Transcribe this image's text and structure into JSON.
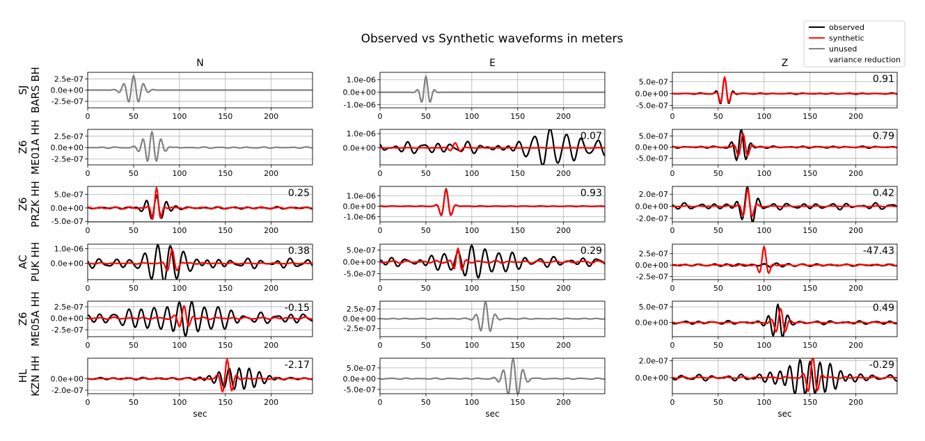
{
  "title": "Observed vs Synthetic waveforms in meters",
  "components": [
    "N",
    "E",
    "Z"
  ],
  "xlabel": "sec",
  "xticks": [
    0,
    50,
    100,
    150,
    200
  ],
  "xlim": [
    0,
    245
  ],
  "legend": {
    "position": "top-right",
    "entries": [
      {
        "label": "observed",
        "color": "#000000",
        "kind": "line"
      },
      {
        "label": "synthetic",
        "color": "#ff0000",
        "kind": "line"
      },
      {
        "label": "unused",
        "color": "#808080",
        "kind": "line"
      },
      {
        "label": "variance reduction",
        "color": "#0000ff",
        "kind": "text"
      }
    ]
  },
  "colors": {
    "observed": "#000000",
    "synthetic": "#ff0000",
    "unused": "#808080",
    "vr_text": "#0000ff"
  },
  "chart_data": {
    "type": "line",
    "stations": [
      {
        "network": "SJ",
        "station": "BARS BH",
        "panels": [
          {
            "comp": "N",
            "used": false,
            "vr": "",
            "ylim": [
              -4e-07,
              4e-07
            ],
            "yticks": [
              2.5e-07,
              0,
              -2.5e-07
            ],
            "yticklabels": [
              "2.5e-07",
              "0.0e+00",
              "-2.5e-07"
            ],
            "obs": {
              "center": 50,
              "width": 12,
              "period": 11,
              "amp": 3.3e-07,
              "noise": 0
            }
          },
          {
            "comp": "E",
            "used": false,
            "vr": "",
            "ylim": [
              -1.25e-06,
              1.6e-06
            ],
            "yticks": [
              1e-06,
              0,
              -1e-06
            ],
            "yticklabels": [
              "1.0e-06",
              "0.0e+00",
              "-1.0e-06"
            ],
            "obs": {
              "center": 50,
              "width": 7,
              "period": 10,
              "amp": 1.3e-06,
              "noise": 0
            }
          },
          {
            "comp": "Z",
            "used": true,
            "vr": "0.91",
            "ylim": [
              -6e-07,
              9e-07
            ],
            "yticks": [
              5e-07,
              0,
              -5e-07
            ],
            "yticklabels": [
              "5.0e-07",
              "0.0e+00",
              "-5.0e-07"
            ],
            "obs": {
              "center": 57,
              "width": 7,
              "period": 10,
              "amp": 7e-07,
              "noise": 0.04
            },
            "syn": {
              "center": 57,
              "width": 6,
              "period": 10,
              "amp": 7e-07,
              "noise": 0.01
            }
          }
        ]
      },
      {
        "network": "Z6",
        "station": "ME01A HH",
        "panels": [
          {
            "comp": "N",
            "used": false,
            "vr": "",
            "ylim": [
              -3.8e-07,
              4e-07
            ],
            "yticks": [
              2.5e-07,
              0,
              -2.5e-07
            ],
            "yticklabels": [
              "2.5e-07",
              "0.0e+00",
              "-2.5e-07"
            ],
            "obs": {
              "center": 70,
              "width": 12,
              "period": 10,
              "amp": 3.6e-07,
              "noise": 0.04
            }
          },
          {
            "comp": "E",
            "used": true,
            "vr": "0.07",
            "ylim": [
              -1.2e-06,
              1.3e-06
            ],
            "yticks": [
              1e-06,
              0
            ],
            "yticklabels": [
              "1.0e-06",
              "0.0e+00"
            ],
            "obs": {
              "center": 185,
              "width": 40,
              "period": 17,
              "amp": 1.3e-06,
              "noise": 0.35
            },
            "syn": {
              "center": 82,
              "width": 8,
              "period": 12,
              "amp": 3.5e-07,
              "noise": 0.05
            }
          },
          {
            "comp": "Z",
            "used": true,
            "vr": "0.79",
            "ylim": [
              -8e-07,
              8e-07
            ],
            "yticks": [
              5e-07,
              0,
              -5e-07
            ],
            "yticklabels": [
              "5.0e-07",
              "0.0e+00",
              "-5.0e-07"
            ],
            "obs": {
              "center": 75,
              "width": 9,
              "period": 11,
              "amp": 8e-07,
              "noise": 0.06
            },
            "syn": {
              "center": 77,
              "width": 8,
              "period": 11,
              "amp": 6e-07,
              "noise": 0.02
            }
          }
        ]
      },
      {
        "network": "Z6",
        "station": "PRZK HH",
        "panels": [
          {
            "comp": "N",
            "used": true,
            "vr": "0.25",
            "ylim": [
              -5.2e-07,
              8e-07
            ],
            "yticks": [
              5e-07,
              0,
              -5e-07
            ],
            "yticklabels": [
              "5.0e-07",
              "0.0e+00",
              "-5.0e-07"
            ],
            "obs": {
              "center": 75,
              "width": 14,
              "period": 11,
              "amp": 4.5e-07,
              "noise": 0.1
            },
            "syn": {
              "center": 75,
              "width": 6,
              "period": 10,
              "amp": 7.5e-07,
              "noise": 0.05
            }
          },
          {
            "comp": "E",
            "used": true,
            "vr": "0.93",
            "ylim": [
              -1.5e-06,
              1.9e-06
            ],
            "yticks": [
              1e-06,
              0,
              -1e-06
            ],
            "yticklabels": [
              "1.0e-06",
              "0.0e+00",
              "-1.0e-06"
            ],
            "obs": {
              "center": 72,
              "width": 7,
              "period": 12,
              "amp": 1.7e-06,
              "noise": 0.02
            },
            "syn": {
              "center": 72,
              "width": 7,
              "period": 12,
              "amp": 1.6e-06,
              "noise": 0.01
            }
          },
          {
            "comp": "Z",
            "used": true,
            "vr": "0.42",
            "ylim": [
              -2.6e-07,
              3.3e-07
            ],
            "yticks": [
              2e-07,
              0,
              -2e-07
            ],
            "yticklabels": [
              "2.0e-07",
              "0.0e+00",
              "-2.0e-07"
            ],
            "obs": {
              "center": 82,
              "width": 12,
              "period": 12,
              "amp": 3.2e-07,
              "noise": 0.18
            },
            "syn": {
              "center": 82,
              "width": 7,
              "period": 11,
              "amp": 2.8e-07,
              "noise": 0.03
            }
          }
        ]
      },
      {
        "network": "AC",
        "station": "PUK HH",
        "panels": [
          {
            "comp": "N",
            "used": true,
            "vr": "0.38",
            "ylim": [
              -1.1e-06,
              1.3e-06
            ],
            "yticks": [
              1e-06,
              0
            ],
            "yticklabels": [
              "1.0e-06",
              "0.0e+00"
            ],
            "obs": {
              "center": 90,
              "width": 30,
              "period": 14,
              "amp": 1.2e-06,
              "noise": 0.3
            },
            "syn": {
              "center": 92,
              "width": 7,
              "period": 12,
              "amp": 9e-07,
              "noise": 0.05
            }
          },
          {
            "comp": "E",
            "used": true,
            "vr": "0.29",
            "ylim": [
              -7.5e-07,
              7.5e-07
            ],
            "yticks": [
              5e-07,
              0,
              -5e-07
            ],
            "yticklabels": [
              "5.0e-07",
              "0.0e+00",
              "-5.0e-07"
            ],
            "obs": {
              "center": 100,
              "width": 45,
              "period": 15,
              "amp": 7e-07,
              "noise": 0.3
            },
            "syn": {
              "center": 85,
              "width": 6,
              "period": 10,
              "amp": 6e-07,
              "noise": 0.1
            }
          },
          {
            "comp": "Z",
            "used": true,
            "vr": "-47.43",
            "ylim": [
              -3.2e-07,
              4.6e-07
            ],
            "yticks": [
              2.5e-07,
              0,
              -2.5e-07
            ],
            "yticklabels": [
              "2.5e-07",
              "0.0e+00",
              "-2.5e-07"
            ],
            "obs": {
              "center": 100,
              "width": 40,
              "period": 14,
              "amp": 4e-08,
              "noise": 0.6
            },
            "syn": {
              "center": 100,
              "width": 6,
              "period": 12,
              "amp": 4.2e-07,
              "noise": 0.05
            }
          }
        ]
      },
      {
        "network": "Z6",
        "station": "ME05A HH",
        "panels": [
          {
            "comp": "N",
            "used": true,
            "vr": "-0.15",
            "ylim": [
              -4e-07,
              3.7e-07
            ],
            "yticks": [
              2.5e-07,
              0,
              -2.5e-07
            ],
            "yticklabels": [
              "2.5e-07",
              "0.0e+00",
              "-2.5e-07"
            ],
            "obs": {
              "center": 100,
              "width": 45,
              "period": 14,
              "amp": 3.8e-07,
              "noise": 0.35
            },
            "syn": {
              "center": 105,
              "width": 8,
              "period": 11,
              "amp": 2.6e-07,
              "noise": 0.1
            }
          },
          {
            "comp": "E",
            "used": false,
            "vr": "",
            "ylim": [
              -4.6e-07,
              4.5e-07
            ],
            "yticks": [
              2.5e-07,
              0,
              -2.5e-07
            ],
            "yticklabels": [
              "2.5e-07",
              "0.0e+00",
              "-2.5e-07"
            ],
            "obs": {
              "center": 115,
              "width": 9,
              "period": 11,
              "amp": 4.5e-07,
              "noise": 0.03
            }
          },
          {
            "comp": "Z",
            "used": true,
            "vr": "0.49",
            "ylim": [
              -4.5e-07,
              6.8e-07
            ],
            "yticks": [
              5e-07,
              0
            ],
            "yticklabels": [
              "5.0e-07",
              "0.0e+00"
            ],
            "obs": {
              "center": 115,
              "width": 10,
              "period": 11,
              "amp": 6e-07,
              "noise": 0.1
            },
            "syn": {
              "center": 118,
              "width": 8,
              "period": 11,
              "amp": 4.5e-07,
              "noise": 0.05
            }
          }
        ]
      },
      {
        "network": "HL",
        "station": "KZN HH",
        "panels": [
          {
            "comp": "N",
            "used": true,
            "vr": "-2.17",
            "ylim": [
              -2.6e-07,
              3.5e-07
            ],
            "yticks": [
              0,
              -2e-07
            ],
            "yticklabels": [
              "0.0e+00",
              "-2.0e-07"
            ],
            "obs": {
              "center": 165,
              "width": 30,
              "period": 11,
              "amp": 2e-07,
              "noise": 0.1
            },
            "syn": {
              "center": 152,
              "width": 8,
              "period": 11,
              "amp": 3.3e-07,
              "noise": 0.05
            }
          },
          {
            "comp": "E",
            "used": false,
            "vr": "",
            "ylim": [
              -7e-07,
              9.5e-07
            ],
            "yticks": [
              5e-07,
              0,
              -5e-07
            ],
            "yticklabels": [
              "5.0e-07",
              "0.0e+00",
              "-5.0e-07"
            ],
            "obs": {
              "center": 145,
              "width": 12,
              "period": 11,
              "amp": 9.5e-07,
              "noise": 0.03
            }
          },
          {
            "comp": "Z",
            "used": true,
            "vr": "-0.29",
            "ylim": [
              -1.9e-07,
              2.3e-07
            ],
            "yticks": [
              2e-07,
              0
            ],
            "yticklabels": [
              "2.0e-07",
              "0.0e+00"
            ],
            "obs": {
              "center": 150,
              "width": 35,
              "period": 11,
              "amp": 2e-07,
              "noise": 0.2
            },
            "syn": {
              "center": 153,
              "width": 8,
              "period": 11,
              "amp": 2.4e-07,
              "noise": 0.05
            }
          }
        ]
      }
    ]
  }
}
